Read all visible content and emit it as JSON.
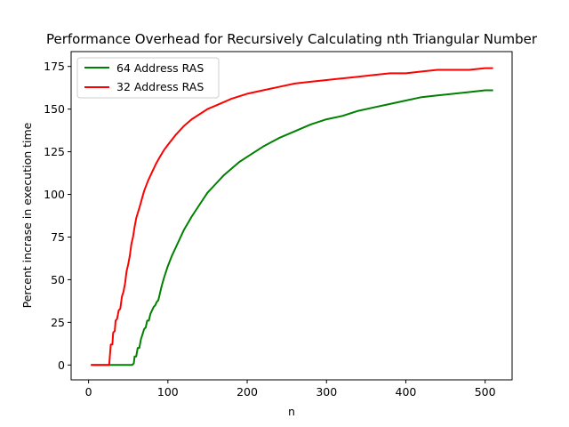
{
  "chart_data": {
    "type": "line",
    "title": "Performance Overhead for Recursively Calculating nth Triangular Number",
    "xlabel": "n",
    "ylabel": "Percent incrase in execution time",
    "xlim": [
      -22,
      534
    ],
    "ylim": [
      -8.7,
      183.7
    ],
    "xticks": [
      0,
      100,
      200,
      300,
      400,
      500
    ],
    "yticks": [
      0,
      25,
      50,
      75,
      100,
      125,
      150,
      175
    ],
    "grid": false,
    "legend_position": "top-left",
    "series": [
      {
        "name": "64 Address RAS",
        "color": "#008000",
        "x": [
          3,
          20,
          40,
          50,
          55,
          57,
          58,
          60,
          62,
          64,
          66,
          68,
          70,
          72,
          74,
          76,
          78,
          80,
          82,
          84,
          86,
          88,
          90,
          92,
          95,
          100,
          105,
          110,
          120,
          130,
          140,
          150,
          160,
          170,
          180,
          190,
          200,
          220,
          240,
          260,
          280,
          300,
          320,
          340,
          360,
          380,
          400,
          420,
          440,
          460,
          480,
          500,
          510
        ],
        "y": [
          0,
          0,
          0,
          0,
          0,
          1,
          5,
          5,
          10,
          10,
          15,
          18,
          21,
          22,
          26,
          26,
          30,
          32,
          34,
          35,
          37,
          38,
          42,
          46,
          51,
          58,
          64,
          69,
          79,
          87,
          94,
          101,
          106,
          111,
          115,
          119,
          122,
          128,
          133,
          137,
          141,
          144,
          146,
          149,
          151,
          153,
          155,
          157,
          158,
          159,
          160,
          161,
          161
        ]
      },
      {
        "name": "32 Address RAS",
        "color": "#ff0000",
        "x": [
          3,
          20,
          26,
          27,
          28,
          30,
          31,
          33,
          34,
          36,
          38,
          40,
          42,
          44,
          46,
          48,
          50,
          52,
          54,
          56,
          58,
          60,
          62,
          64,
          67,
          70,
          75,
          80,
          85,
          90,
          95,
          100,
          110,
          120,
          130,
          140,
          150,
          160,
          180,
          200,
          220,
          240,
          260,
          280,
          300,
          320,
          340,
          360,
          380,
          400,
          420,
          440,
          460,
          480,
          500,
          510
        ],
        "y": [
          0,
          0,
          0,
          6,
          12,
          12,
          19,
          20,
          26,
          27,
          32,
          33,
          40,
          43,
          48,
          55,
          59,
          64,
          71,
          75,
          81,
          86,
          89,
          92,
          97,
          102,
          108,
          113,
          118,
          122,
          126,
          129,
          135,
          140,
          144,
          147,
          150,
          152,
          156,
          159,
          161,
          163,
          165,
          166,
          167,
          168,
          169,
          170,
          171,
          171,
          172,
          173,
          173,
          173,
          174,
          174
        ]
      }
    ]
  }
}
